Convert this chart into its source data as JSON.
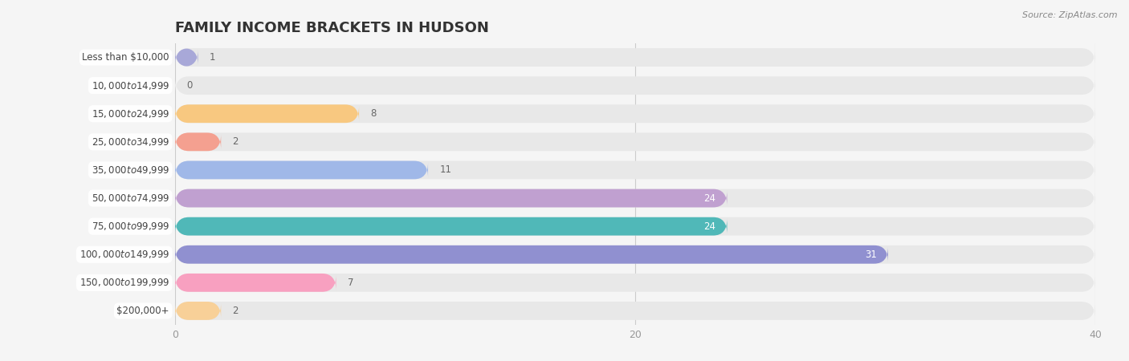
{
  "title": "FAMILY INCOME BRACKETS IN HUDSON",
  "source": "Source: ZipAtlas.com",
  "categories": [
    "Less than $10,000",
    "$10,000 to $14,999",
    "$15,000 to $24,999",
    "$25,000 to $34,999",
    "$35,000 to $49,999",
    "$50,000 to $74,999",
    "$75,000 to $99,999",
    "$100,000 to $149,999",
    "$150,000 to $199,999",
    "$200,000+"
  ],
  "values": [
    1,
    0,
    8,
    2,
    11,
    24,
    24,
    31,
    7,
    2
  ],
  "bar_colors": [
    "#a8a8d8",
    "#f4a0b0",
    "#f8c880",
    "#f4a090",
    "#a0b8e8",
    "#c0a0d0",
    "#50b8b8",
    "#9090d0",
    "#f8a0c0",
    "#f8d098"
  ],
  "xlim": [
    0,
    40
  ],
  "xticks": [
    0,
    20,
    40
  ],
  "background_color": "#f5f5f5",
  "bar_background_color": "#e8e8e8",
  "title_fontsize": 13,
  "label_fontsize": 8.5,
  "value_fontsize": 8.5,
  "fig_width": 14.06,
  "fig_height": 4.5,
  "dpi": 100
}
